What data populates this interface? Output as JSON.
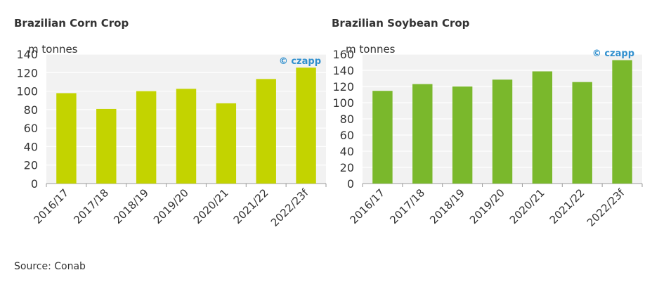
{
  "source": "Source: Conab",
  "watermark": "© czapp",
  "colors": {
    "corn": "#c3d300",
    "soy": "#7ab82c",
    "plot_bg": "#f2f2f2",
    "grid": "#ffffff",
    "watermark": "#2f8fce"
  },
  "chart_data": [
    {
      "type": "bar",
      "title": "Brazilian Corn Crop",
      "ylabel": "m tonnes",
      "categories": [
        "2016/17",
        "2017/18",
        "2018/19",
        "2019/20",
        "2020/21",
        "2021/22",
        "2022/23f"
      ],
      "values": [
        97.8,
        80.7,
        100.0,
        102.5,
        86.8,
        113.1,
        125.4
      ],
      "ylim": [
        0,
        140
      ],
      "yticks": [
        0,
        20,
        40,
        60,
        80,
        100,
        120,
        140
      ],
      "grid": true,
      "color": "#c3d300"
    },
    {
      "type": "bar",
      "title": "Brazilian Soybean Crop",
      "ylabel": "m tonnes",
      "categories": [
        "2016/17",
        "2017/18",
        "2018/19",
        "2019/20",
        "2020/21",
        "2021/22",
        "2022/23f"
      ],
      "values": [
        114.6,
        123.0,
        120.0,
        128.5,
        138.7,
        125.5,
        152.6
      ],
      "ylim": [
        0,
        160
      ],
      "yticks": [
        0,
        20,
        40,
        60,
        80,
        100,
        120,
        140,
        160
      ],
      "grid": true,
      "color": "#7ab82c"
    }
  ]
}
